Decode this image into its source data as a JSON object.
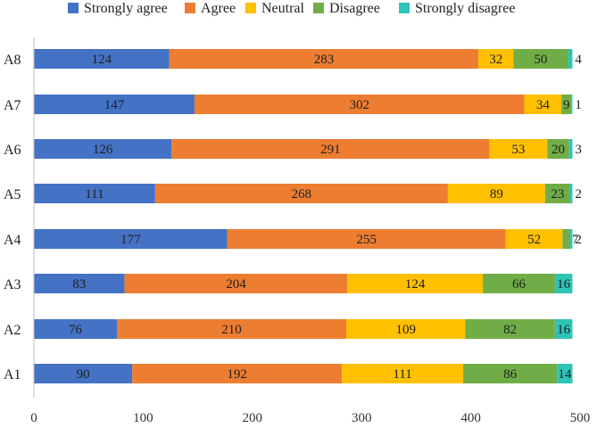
{
  "chart_data": {
    "type": "bar",
    "orientation": "horizontal",
    "stacked": true,
    "title": "",
    "xlabel": "",
    "ylabel": "",
    "xlim": [
      0,
      500
    ],
    "x_ticks": [
      0,
      100,
      200,
      300,
      400,
      500
    ],
    "grid": false,
    "legend_position": "top",
    "categories": [
      "A1",
      "A2",
      "A3",
      "A4",
      "A5",
      "A6",
      "A7",
      "A8"
    ],
    "series": [
      {
        "name": "Strongly agree",
        "color": "#4472C4",
        "values": [
          90,
          76,
          83,
          177,
          111,
          126,
          147,
          124
        ]
      },
      {
        "name": "Agree",
        "color": "#ED7D31",
        "values": [
          192,
          210,
          204,
          255,
          268,
          291,
          302,
          283
        ]
      },
      {
        "name": "Neutral",
        "color": "#FFC000",
        "values": [
          111,
          109,
          124,
          52,
          89,
          53,
          34,
          32
        ]
      },
      {
        "name": "Disagree",
        "color": "#70AD47",
        "values": [
          86,
          82,
          66,
          7,
          23,
          20,
          9,
          50
        ]
      },
      {
        "name": "Strongly disagree",
        "color": "#2EC4B6",
        "values": [
          14,
          16,
          16,
          2,
          2,
          3,
          1,
          4
        ]
      }
    ]
  }
}
